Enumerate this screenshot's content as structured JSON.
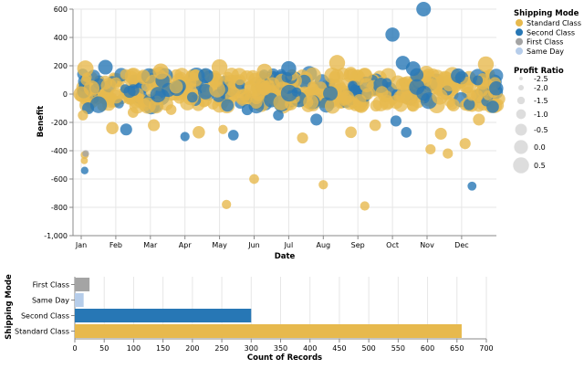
{
  "chart_data": [
    {
      "type": "scatter",
      "xlabel": "Date",
      "ylabel": "Benefit",
      "ylim": [
        -1000,
        600
      ],
      "yticks": [
        "600",
        "400",
        "200",
        "0",
        "-200",
        "-400",
        "-600",
        "-800",
        "-1,000"
      ],
      "ytick_values": [
        600,
        400,
        200,
        0,
        -200,
        -400,
        -600,
        -800,
        -1000
      ],
      "xticks": [
        "Jan",
        "Feb",
        "Mar",
        "Apr",
        "May",
        "Jun",
        "Jul",
        "Aug",
        "Sep",
        "Oct",
        "Nov",
        "Dec"
      ],
      "grid": true,
      "colors": {
        "Standard Class": "#e7b94d",
        "Second Class": "#2777b5",
        "First Class": "#a4a4a4",
        "Same Day": "#b6cdea"
      },
      "color_legend": {
        "title": "Shipping Mode",
        "entries": [
          "Standard Class",
          "Second Class",
          "First Class",
          "Same Day"
        ]
      },
      "size_legend": {
        "title": "Profit Ratio",
        "entries": [
          "-2.5",
          "-2.0",
          "-1.5",
          "-1.0",
          "-0.5",
          "0.0",
          "0.5"
        ],
        "values": [
          -2.5,
          -2.0,
          -1.5,
          -1.0,
          -0.5,
          0.0,
          0.5
        ]
      },
      "points": [
        {
          "month": 0.0,
          "benefit": 0,
          "mode": "Standard Class",
          "ratio": 0.2
        },
        {
          "month": 0.12,
          "benefit": 180,
          "mode": "Standard Class",
          "ratio": 0.4
        },
        {
          "month": 0.1,
          "benefit": -430,
          "mode": "Standard Class",
          "ratio": -1.5
        },
        {
          "month": 0.09,
          "benefit": -470,
          "mode": "Standard Class",
          "ratio": -1.7
        },
        {
          "month": 0.1,
          "benefit": -540,
          "mode": "Second Class",
          "ratio": -1.6
        },
        {
          "month": 0.13,
          "benefit": -420,
          "mode": "First Class",
          "ratio": -1.8
        },
        {
          "month": 0.2,
          "benefit": -100,
          "mode": "Second Class",
          "ratio": -0.6
        },
        {
          "month": 0.3,
          "benefit": 40,
          "mode": "Standard Class",
          "ratio": 0.3
        },
        {
          "month": 0.05,
          "benefit": -150,
          "mode": "Standard Class",
          "ratio": -1.0
        },
        {
          "month": 0.7,
          "benefit": 190,
          "mode": "Second Class",
          "ratio": 0.0
        },
        {
          "month": 0.9,
          "benefit": -240,
          "mode": "Standard Class",
          "ratio": -0.5
        },
        {
          "month": 1.3,
          "benefit": -250,
          "mode": "Second Class",
          "ratio": -0.6
        },
        {
          "month": 1.5,
          "benefit": -130,
          "mode": "Standard Class",
          "ratio": -0.9
        },
        {
          "month": 2.1,
          "benefit": -220,
          "mode": "Standard Class",
          "ratio": -0.6
        },
        {
          "month": 2.3,
          "benefit": 160,
          "mode": "Standard Class",
          "ratio": 0.3
        },
        {
          "month": 2.6,
          "benefit": -110,
          "mode": "Standard Class",
          "ratio": -0.9
        },
        {
          "month": 3.0,
          "benefit": -300,
          "mode": "Second Class",
          "ratio": -1.2
        },
        {
          "month": 3.4,
          "benefit": -270,
          "mode": "Standard Class",
          "ratio": -0.5
        },
        {
          "month": 3.6,
          "benefit": 130,
          "mode": "Second Class",
          "ratio": 0.1
        },
        {
          "month": 4.0,
          "benefit": 190,
          "mode": "Standard Class",
          "ratio": 0.3
        },
        {
          "month": 4.1,
          "benefit": -250,
          "mode": "Standard Class",
          "ratio": -1.2
        },
        {
          "month": 4.2,
          "benefit": -780,
          "mode": "Standard Class",
          "ratio": -1.2
        },
        {
          "month": 4.4,
          "benefit": -290,
          "mode": "Second Class",
          "ratio": -0.9
        },
        {
          "month": 4.8,
          "benefit": -110,
          "mode": "Second Class",
          "ratio": -0.8
        },
        {
          "month": 5.0,
          "benefit": -600,
          "mode": "Standard Class",
          "ratio": -1.1
        },
        {
          "month": 5.3,
          "benefit": 160,
          "mode": "Standard Class",
          "ratio": 0.2
        },
        {
          "month": 5.7,
          "benefit": -150,
          "mode": "Second Class",
          "ratio": -0.9
        },
        {
          "month": 6.0,
          "benefit": 180,
          "mode": "Second Class",
          "ratio": 0.1
        },
        {
          "month": 6.4,
          "benefit": -310,
          "mode": "Standard Class",
          "ratio": -0.8
        },
        {
          "month": 6.8,
          "benefit": -180,
          "mode": "Second Class",
          "ratio": -0.6
        },
        {
          "month": 7.0,
          "benefit": -640,
          "mode": "Standard Class",
          "ratio": -1.2
        },
        {
          "month": 7.4,
          "benefit": 220,
          "mode": "Standard Class",
          "ratio": 0.3
        },
        {
          "month": 7.8,
          "benefit": -270,
          "mode": "Standard Class",
          "ratio": -0.7
        },
        {
          "month": 8.2,
          "benefit": -790,
          "mode": "Standard Class",
          "ratio": -1.2
        },
        {
          "month": 8.5,
          "benefit": -220,
          "mode": "Standard Class",
          "ratio": -0.7
        },
        {
          "month": 9.0,
          "benefit": 420,
          "mode": "Second Class",
          "ratio": -0.1
        },
        {
          "month": 9.1,
          "benefit": -190,
          "mode": "Second Class",
          "ratio": -0.8
        },
        {
          "month": 9.3,
          "benefit": 220,
          "mode": "Second Class",
          "ratio": -0.1
        },
        {
          "month": 9.4,
          "benefit": -270,
          "mode": "Second Class",
          "ratio": -0.9
        },
        {
          "month": 9.6,
          "benefit": 180,
          "mode": "Second Class",
          "ratio": 0.0
        },
        {
          "month": 9.9,
          "benefit": 600,
          "mode": "Second Class",
          "ratio": 0.0
        },
        {
          "month": 10.1,
          "benefit": -390,
          "mode": "Standard Class",
          "ratio": -1.0
        },
        {
          "month": 10.4,
          "benefit": -280,
          "mode": "Standard Class",
          "ratio": -0.6
        },
        {
          "month": 10.6,
          "benefit": -420,
          "mode": "Standard Class",
          "ratio": -1.0
        },
        {
          "month": 10.9,
          "benefit": 130,
          "mode": "Second Class",
          "ratio": 0.0
        },
        {
          "month": 11.1,
          "benefit": -350,
          "mode": "Standard Class",
          "ratio": -0.8
        },
        {
          "month": 11.3,
          "benefit": -650,
          "mode": "Second Class",
          "ratio": -1.3
        },
        {
          "month": 11.5,
          "benefit": -180,
          "mode": "Standard Class",
          "ratio": -0.6
        },
        {
          "month": 11.7,
          "benefit": 210,
          "mode": "Standard Class",
          "ratio": 0.3
        },
        {
          "month": 11.9,
          "benefit": -90,
          "mode": "Second Class",
          "ratio": -0.5
        },
        {
          "month": 12.0,
          "benefit": 40,
          "mode": "Second Class",
          "ratio": -0.1
        }
      ]
    },
    {
      "type": "bar",
      "orientation": "horizontal",
      "xlabel": "Count of Records",
      "ylabel": "Shipping Mode",
      "categories": [
        "First Class",
        "Same Day",
        "Second Class",
        "Standard Class"
      ],
      "values": [
        25,
        15,
        300,
        658
      ],
      "xlim": [
        0,
        700
      ],
      "xticks": [
        "0",
        "50",
        "100",
        "150",
        "200",
        "250",
        "300",
        "350",
        "400",
        "450",
        "500",
        "550",
        "600",
        "650",
        "700"
      ],
      "xtick_values": [
        0,
        50,
        100,
        150,
        200,
        250,
        300,
        350,
        400,
        450,
        500,
        550,
        600,
        650,
        700
      ]
    }
  ]
}
